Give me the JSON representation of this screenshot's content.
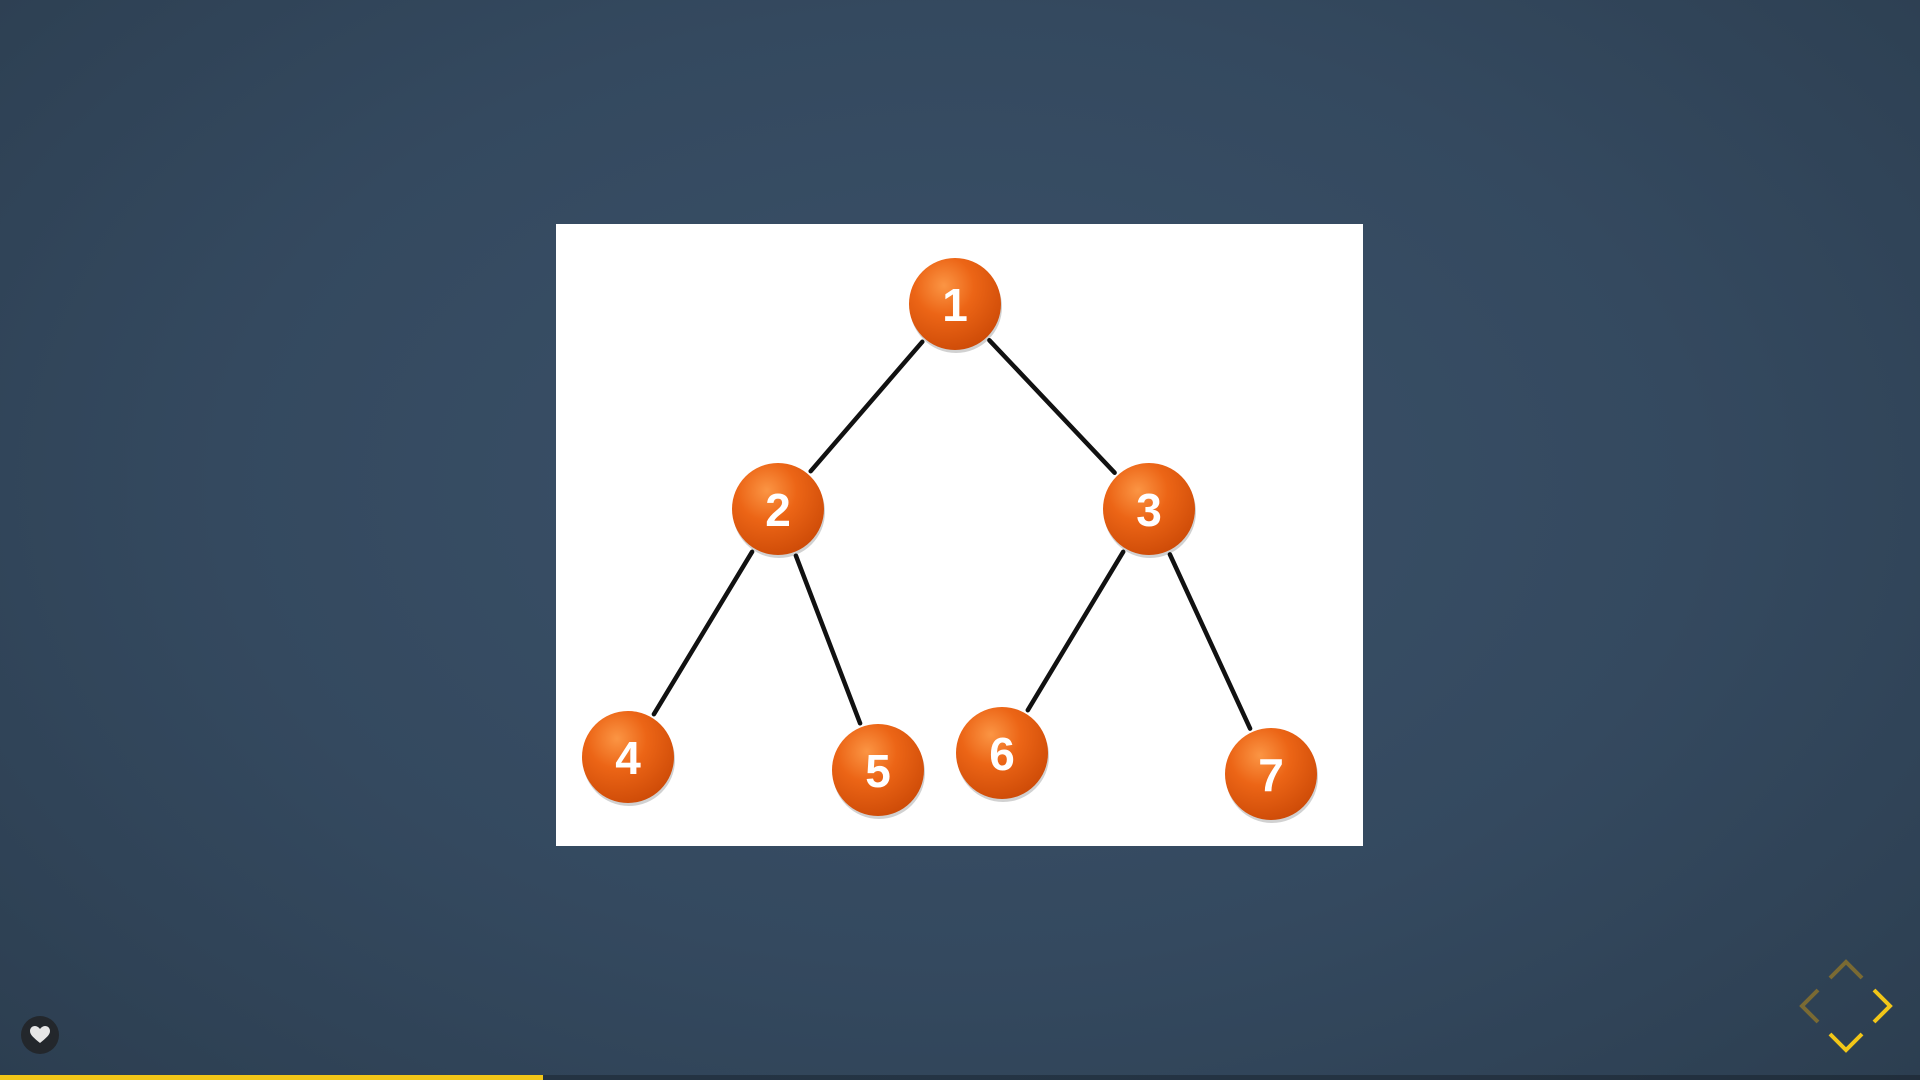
{
  "slide": {
    "tree": {
      "nodes": [
        {
          "label": "1"
        },
        {
          "label": "2"
        },
        {
          "label": "3"
        },
        {
          "label": "4"
        },
        {
          "label": "5"
        },
        {
          "label": "6"
        },
        {
          "label": "7"
        }
      ],
      "edges": [
        [
          "1",
          "2"
        ],
        [
          "1",
          "3"
        ],
        [
          "2",
          "4"
        ],
        [
          "2",
          "5"
        ],
        [
          "3",
          "6"
        ],
        [
          "3",
          "7"
        ]
      ],
      "node_color": "#e8570e",
      "edge_color": "#111111"
    }
  },
  "controls": {
    "like_icon": "heart-icon",
    "nav": {
      "up_icon": "chevron-up-icon",
      "left_icon": "chevron-left-icon",
      "right_icon": "chevron-right-icon",
      "down_icon": "chevron-down-icon",
      "enabled_color": "#f2c618",
      "disabled_color": "#7a6a33"
    }
  },
  "progress": {
    "fraction": 0.283,
    "color": "#f2c618"
  }
}
